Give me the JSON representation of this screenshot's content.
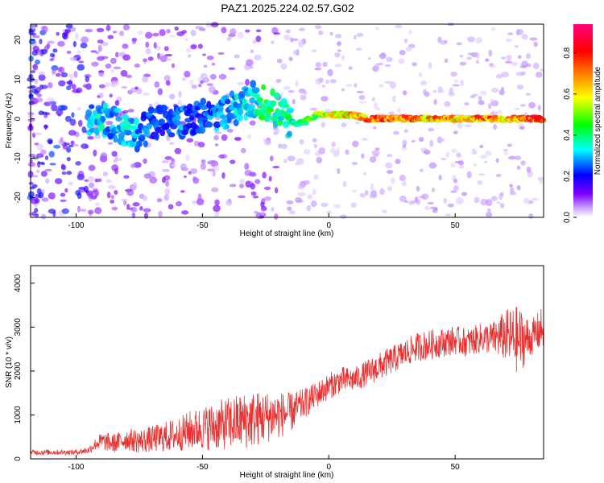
{
  "title": "PAZ1.2025.224.02.57.G02",
  "chart_data": [
    {
      "type": "heatmap",
      "xlabel": "Height of straight line (km)",
      "ylabel": "Frequency (Hz)",
      "xlim": [
        -118,
        85
      ],
      "ylim": [
        -25,
        24
      ],
      "xticks": [
        -100,
        -50,
        0,
        50
      ],
      "yticks": [
        -20,
        -10,
        0,
        10,
        20
      ],
      "colorbar": {
        "label": "Normalized spectral amplitude",
        "range": [
          0,
          0.94
        ],
        "ticks": [
          0.0,
          0.2,
          0.4,
          0.6,
          0.8
        ],
        "tick_labels": [
          "0.0",
          "0.2",
          "0.4",
          "0.6",
          "0.8"
        ],
        "colormap": [
          "#ffffff",
          "#8000ff",
          "#0000ff",
          "#00ffff",
          "#00ff00",
          "#ffff00",
          "#ff8000",
          "#ff0000",
          "#ff00ff"
        ]
      },
      "ridge": [
        {
          "x": -95,
          "freq": 0,
          "amp": 0.3
        },
        {
          "x": -90,
          "freq": 0,
          "amp": 0.35
        },
        {
          "x": -85,
          "freq": -1,
          "amp": 0.3
        },
        {
          "x": -80,
          "freq": -3,
          "amp": 0.35
        },
        {
          "x": -75,
          "freq": -4,
          "amp": 0.3
        },
        {
          "x": -70,
          "freq": -1,
          "amp": 0.25
        },
        {
          "x": -65,
          "freq": -1,
          "amp": 0.25
        },
        {
          "x": -60,
          "freq": -1,
          "amp": 0.3
        },
        {
          "x": -55,
          "freq": 0,
          "amp": 0.25
        },
        {
          "x": -50,
          "freq": 1,
          "amp": 0.25
        },
        {
          "x": -45,
          "freq": 1,
          "amp": 0.3
        },
        {
          "x": -40,
          "freq": 2,
          "amp": 0.3
        },
        {
          "x": -35,
          "freq": 3,
          "amp": 0.35
        },
        {
          "x": -30,
          "freq": 5,
          "amp": 0.35
        },
        {
          "x": -25,
          "freq": 4,
          "amp": 0.45
        },
        {
          "x": -20,
          "freq": 2,
          "amp": 0.4
        },
        {
          "x": -15,
          "freq": -1,
          "amp": 0.4
        },
        {
          "x": -10,
          "freq": -1,
          "amp": 0.45
        },
        {
          "x": -5,
          "freq": 1,
          "amp": 0.55
        },
        {
          "x": 0,
          "freq": 1,
          "amp": 0.6
        },
        {
          "x": 5,
          "freq": 1,
          "amp": 0.65
        },
        {
          "x": 10,
          "freq": 1,
          "amp": 0.7
        },
        {
          "x": 15,
          "freq": 0,
          "amp": 0.75
        },
        {
          "x": 20,
          "freq": 0,
          "amp": 0.8
        },
        {
          "x": 25,
          "freq": 0,
          "amp": 0.85
        },
        {
          "x": 30,
          "freq": 0,
          "amp": 0.8
        },
        {
          "x": 35,
          "freq": 0,
          "amp": 0.75
        },
        {
          "x": 40,
          "freq": 0,
          "amp": 0.7
        },
        {
          "x": 45,
          "freq": 0,
          "amp": 0.75
        },
        {
          "x": 50,
          "freq": 0,
          "amp": 0.7
        },
        {
          "x": 55,
          "freq": 0,
          "amp": 0.65
        },
        {
          "x": 60,
          "freq": 0,
          "amp": 0.8
        },
        {
          "x": 65,
          "freq": 0,
          "amp": 0.75
        },
        {
          "x": 70,
          "freq": 0,
          "amp": 0.7
        },
        {
          "x": 75,
          "freq": 0,
          "amp": 0.75
        },
        {
          "x": 80,
          "freq": 0,
          "amp": 0.85
        },
        {
          "x": 85,
          "freq": 0,
          "amp": 0.8
        }
      ]
    },
    {
      "type": "line",
      "xlabel": "Height of straight line (km)",
      "ylabel": "SNR (10 * v/v)",
      "xlim": [
        -118,
        85
      ],
      "ylim": [
        0,
        4400
      ],
      "xticks": [
        -100,
        -50,
        0,
        50
      ],
      "yticks": [
        0,
        1000,
        2000,
        3000,
        4000
      ],
      "color": "#e83030",
      "series": [
        {
          "x": [
            -118,
            -110,
            -100,
            -95,
            -92,
            -90,
            -85,
            -80,
            -75,
            -70,
            -65,
            -60,
            -55,
            -50,
            -45,
            -40,
            -35,
            -30,
            -25,
            -20,
            -15,
            -10,
            -5,
            0,
            5,
            10,
            15,
            20,
            25,
            30,
            35,
            40,
            45,
            50,
            55,
            60,
            65,
            70,
            75,
            80,
            85
          ],
          "y": [
            150,
            150,
            150,
            200,
            350,
            400,
            350,
            450,
            400,
            450,
            500,
            550,
            650,
            700,
            750,
            800,
            850,
            900,
            950,
            1000,
            1050,
            1250,
            1450,
            1650,
            1800,
            1800,
            1950,
            2100,
            2250,
            2400,
            2550,
            2600,
            2650,
            2700,
            2650,
            2750,
            2750,
            2800,
            2700,
            2750,
            3000
          ],
          "amplitude": [
            60,
            60,
            60,
            80,
            150,
            200,
            220,
            250,
            280,
            300,
            350,
            380,
            450,
            500,
            550,
            600,
            650,
            650,
            600,
            550,
            450,
            350,
            300,
            300,
            300,
            280,
            300,
            320,
            320,
            320,
            330,
            340,
            330,
            330,
            330,
            340,
            380,
            600,
            800,
            400,
            500
          ]
        }
      ]
    }
  ]
}
